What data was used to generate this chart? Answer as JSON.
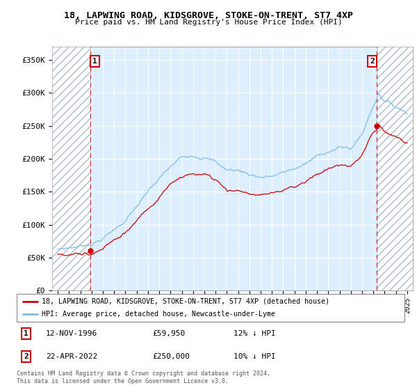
{
  "title1": "18, LAPWING ROAD, KIDSGROVE, STOKE-ON-TRENT, ST7 4XP",
  "title2": "Price paid vs. HM Land Registry's House Price Index (HPI)",
  "ylabel_ticks": [
    "£0",
    "£50K",
    "£100K",
    "£150K",
    "£200K",
    "£250K",
    "£300K",
    "£350K"
  ],
  "ytick_vals": [
    0,
    50000,
    100000,
    150000,
    200000,
    250000,
    300000,
    350000
  ],
  "ylim": [
    0,
    370000
  ],
  "xlim_start": 1993.5,
  "xlim_end": 2025.5,
  "hpi_color": "#7abde8",
  "price_color": "#cc0000",
  "dot_color": "#cc0000",
  "bg_color": "#ffffff",
  "plot_bg_color": "#ddeeff",
  "grid_color": "#ffffff",
  "transaction1_x": 1996.87,
  "transaction1_y": 59950,
  "transaction2_x": 2022.3,
  "transaction2_y": 250000,
  "transaction1_date": "12-NOV-1996",
  "transaction1_price": "£59,950",
  "transaction1_hpi": "12% ↓ HPI",
  "transaction2_date": "22-APR-2022",
  "transaction2_price": "£250,000",
  "transaction2_hpi": "10% ↓ HPI",
  "legend_label1": "18, LAPWING ROAD, KIDSGROVE, STOKE-ON-TRENT, ST7 4XP (detached house)",
  "legend_label2": "HPI: Average price, detached house, Newcastle-under-Lyme",
  "footer1": "Contains HM Land Registry data © Crown copyright and database right 2024.",
  "footer2": "This data is licensed under the Open Government Licence v3.0.",
  "xtick_years": [
    1994,
    1995,
    1996,
    1997,
    1998,
    1999,
    2000,
    2001,
    2002,
    2003,
    2004,
    2005,
    2006,
    2007,
    2008,
    2009,
    2010,
    2011,
    2012,
    2013,
    2014,
    2015,
    2016,
    2017,
    2018,
    2019,
    2020,
    2021,
    2022,
    2023,
    2024,
    2025
  ]
}
